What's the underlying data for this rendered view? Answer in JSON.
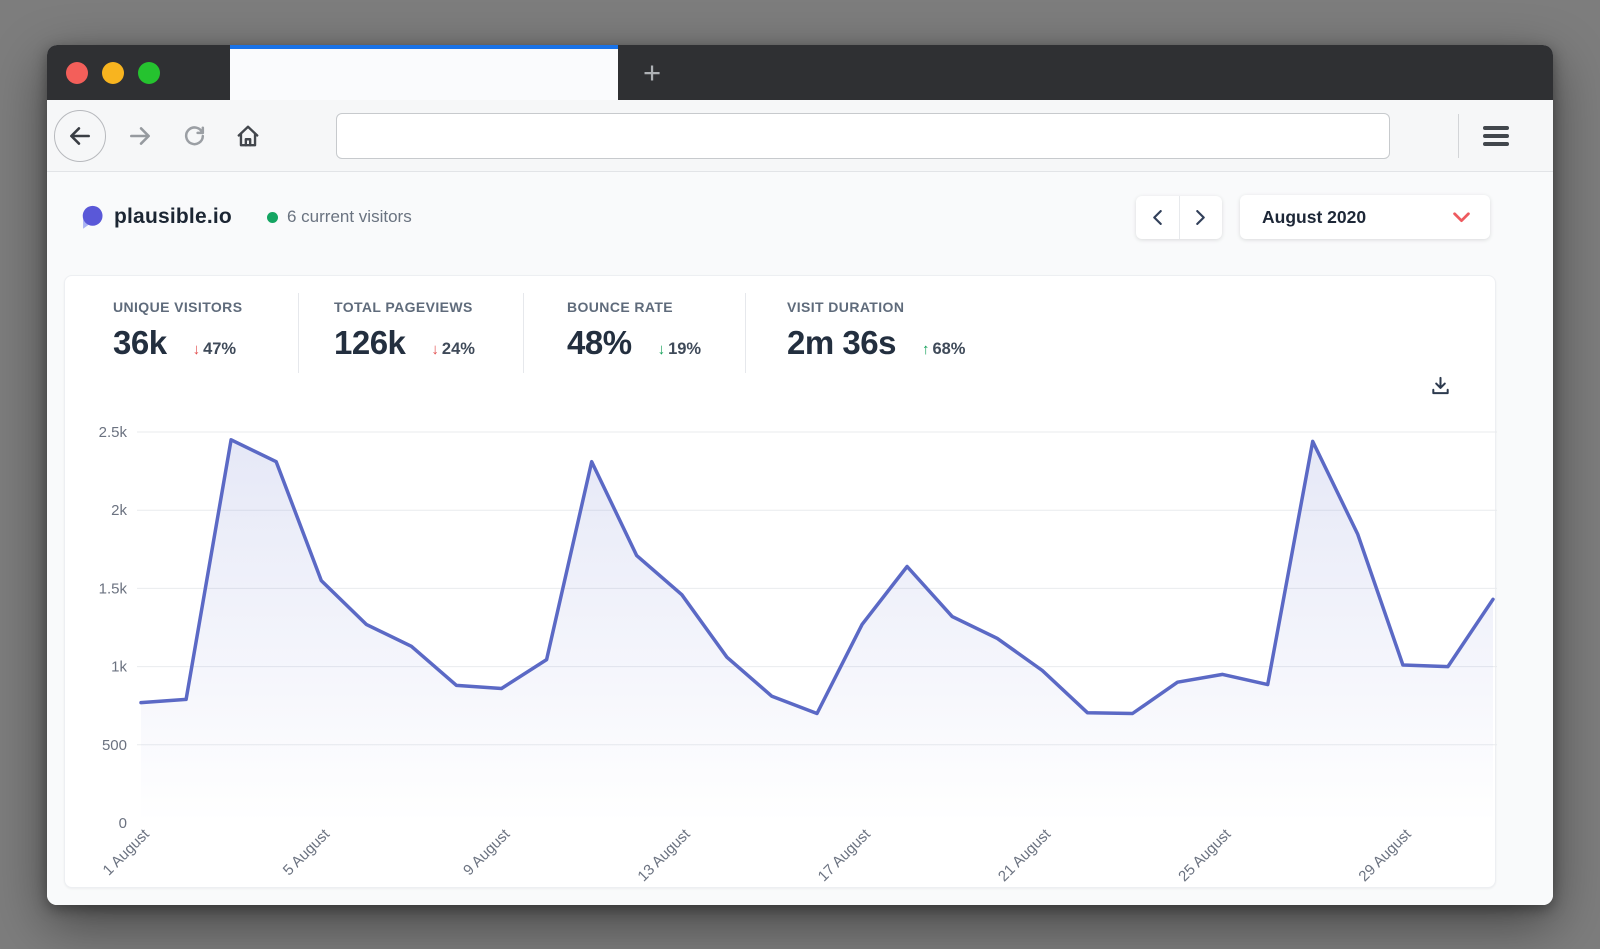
{
  "browser": {
    "new_tab_label": "+",
    "traffic_lights": {
      "close_color": "#f35f5a",
      "minimize_color": "#f8b41f",
      "maximize_color": "#25c32f"
    },
    "url_value": "",
    "url_placeholder": ""
  },
  "header": {
    "site_name": "plausible.io",
    "current_visitors": "6 current visitors",
    "date_range": "August 2020"
  },
  "stats": [
    {
      "label": "UNIQUE VISITORS",
      "value": "36k",
      "arrow": "↓",
      "change": "47%",
      "sentiment": "bad"
    },
    {
      "label": "TOTAL PAGEVIEWS",
      "value": "126k",
      "arrow": "↓",
      "change": "24%",
      "sentiment": "bad"
    },
    {
      "label": "BOUNCE RATE",
      "value": "48%",
      "arrow": "↓",
      "change": "19%",
      "sentiment": "good"
    },
    {
      "label": "VISIT DURATION",
      "value": "2m 36s",
      "arrow": "↑",
      "change": "68%",
      "sentiment": "good"
    }
  ],
  "chart_data": {
    "type": "area",
    "title": "Visitors per day, August 2020",
    "x": [
      1,
      2,
      3,
      4,
      5,
      6,
      7,
      8,
      9,
      10,
      11,
      12,
      13,
      14,
      15,
      16,
      17,
      18,
      19,
      20,
      21,
      22,
      23,
      24,
      25,
      26,
      27,
      28,
      29,
      30,
      31
    ],
    "values": [
      770,
      790,
      2450,
      2310,
      1550,
      1270,
      1130,
      880,
      860,
      1045,
      2310,
      1710,
      1460,
      1060,
      810,
      700,
      1270,
      1640,
      1320,
      1180,
      975,
      705,
      700,
      900,
      950,
      885,
      2440,
      1845,
      1010,
      1000,
      1430
    ],
    "xlabel": "",
    "ylabel": "",
    "ylim": [
      0,
      2500
    ],
    "y_ticks": [
      0,
      500,
      1000,
      1500,
      2000,
      2500
    ],
    "y_tick_labels": [
      "0",
      "500",
      "1k",
      "1.5k",
      "2k",
      "2.5k"
    ],
    "x_tick_days": [
      1,
      5,
      9,
      13,
      17,
      21,
      25,
      29
    ],
    "x_tick_labels": [
      "1 August",
      "5 August",
      "9 August",
      "13 August",
      "17 August",
      "21 August",
      "25 August",
      "29 August"
    ],
    "grid": "horizontal",
    "legend": "none",
    "line_color": "#5b69c5",
    "fill_color": "101,116,205"
  }
}
